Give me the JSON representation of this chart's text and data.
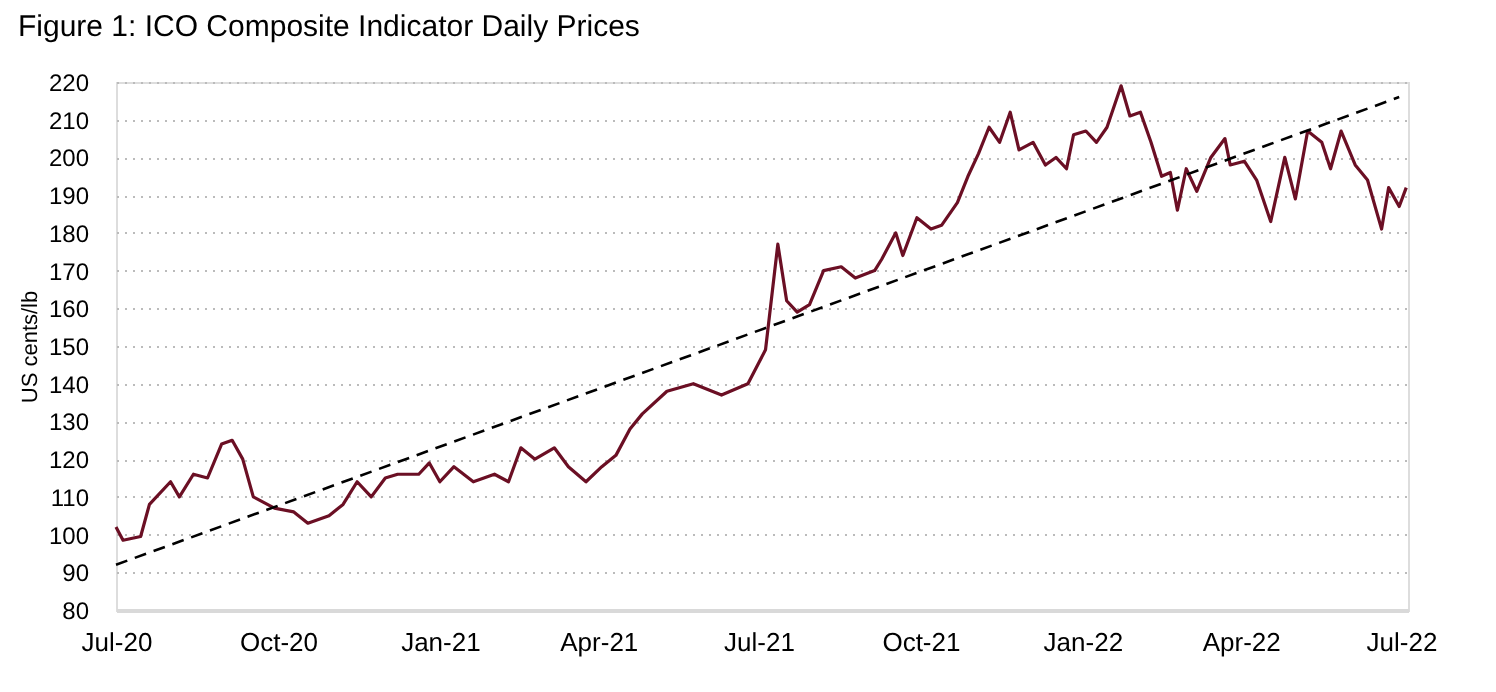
{
  "chart_data": {
    "type": "line",
    "title": "Figure 1: ICO Composite Indicator Daily Prices",
    "ylabel": "US cents/lb",
    "series": [
      {
        "color": "#6b0f24",
        "x": [
          "2020-07-01",
          "2020-07-05",
          "2020-07-15",
          "2020-07-20",
          "2020-08-01",
          "2020-08-06",
          "2020-08-14",
          "2020-08-22",
          "2020-08-30",
          "2020-09-05",
          "2020-09-11",
          "2020-09-17",
          "2020-09-29",
          "2020-10-10",
          "2020-10-18",
          "2020-10-30",
          "2020-11-07",
          "2020-11-15",
          "2020-11-23",
          "2020-12-01",
          "2020-12-08",
          "2020-12-20",
          "2020-12-26",
          "2021-01-01",
          "2021-01-09",
          "2021-01-20",
          "2021-02-01",
          "2021-02-09",
          "2021-02-16",
          "2021-02-24",
          "2021-03-07",
          "2021-03-15",
          "2021-03-25",
          "2021-04-03",
          "2021-04-11",
          "2021-04-19",
          "2021-04-26",
          "2021-05-10",
          "2021-05-25",
          "2021-06-10",
          "2021-06-25",
          "2021-07-05",
          "2021-07-12",
          "2021-07-17",
          "2021-07-23",
          "2021-07-30",
          "2021-08-07",
          "2021-08-17",
          "2021-08-25",
          "2021-09-05",
          "2021-09-09",
          "2021-09-17",
          "2021-09-21",
          "2021-09-29",
          "2021-10-07",
          "2021-10-13",
          "2021-10-22",
          "2021-10-28",
          "2021-11-03",
          "2021-11-09",
          "2021-11-15",
          "2021-11-21",
          "2021-11-26",
          "2021-12-04",
          "2021-12-11",
          "2021-12-17",
          "2021-12-23",
          "2021-12-27",
          "2022-01-03",
          "2022-01-09",
          "2022-01-15",
          "2022-01-23",
          "2022-01-28",
          "2022-02-03",
          "2022-02-09",
          "2022-02-15",
          "2022-02-20",
          "2022-02-24",
          "2022-03-01",
          "2022-03-07",
          "2022-03-15",
          "2022-03-23",
          "2022-03-26",
          "2022-04-03",
          "2022-04-10",
          "2022-04-18",
          "2022-04-26",
          "2022-05-02",
          "2022-05-09",
          "2022-05-17",
          "2022-05-22",
          "2022-05-28",
          "2022-06-05",
          "2022-06-12",
          "2022-06-20",
          "2022-06-24",
          "2022-06-30",
          "2022-07-04"
        ],
        "values": [
          102,
          98.5,
          99.5,
          108,
          114,
          110,
          116,
          115,
          124,
          125,
          120,
          110,
          107,
          106,
          103,
          105,
          108,
          114,
          110,
          115,
          116,
          116,
          119,
          114,
          118,
          114,
          116,
          114,
          123,
          120,
          123,
          118,
          114,
          118,
          121,
          128,
          132,
          138,
          140,
          137,
          140,
          149,
          177,
          162,
          159,
          161,
          170,
          171,
          168,
          170,
          173,
          180,
          174,
          184,
          181,
          182,
          188,
          195,
          201,
          208,
          204,
          212,
          202,
          204,
          198,
          200,
          197,
          206,
          207,
          204,
          208,
          219,
          211,
          212,
          204,
          195,
          196,
          186,
          197,
          191,
          200,
          205,
          198,
          199,
          194,
          183,
          200,
          189,
          207,
          204,
          197,
          207,
          198,
          194,
          181,
          192,
          187,
          192
        ]
      },
      {
        "type": "line",
        "color": "#000000",
        "line_style": "dashed",
        "x": [
          "2020-07-01",
          "2022-06-30"
        ],
        "values": [
          92,
          216
        ]
      }
    ],
    "xlim": [
      "2020-07-01",
      "2022-07-05"
    ],
    "xticks": [
      {
        "value": "2020-07-01",
        "label": "Jul-20"
      },
      {
        "value": "2020-10-01",
        "label": "Oct-20"
      },
      {
        "value": "2021-01-01",
        "label": "Jan-21"
      },
      {
        "value": "2021-04-01",
        "label": "Apr-21"
      },
      {
        "value": "2021-07-01",
        "label": "Jul-21"
      },
      {
        "value": "2021-10-01",
        "label": "Oct-21"
      },
      {
        "value": "2022-01-01",
        "label": "Jan-22"
      },
      {
        "value": "2022-04-01",
        "label": "Apr-22"
      },
      {
        "value": "2022-07-01",
        "label": "Jul-22"
      }
    ],
    "ylim": [
      80,
      220
    ],
    "yticks": [
      80,
      90,
      100,
      110,
      120,
      130,
      140,
      150,
      160,
      170,
      180,
      190,
      200,
      210,
      220
    ],
    "grid": "y",
    "line_style": "solid",
    "marker": "none"
  }
}
